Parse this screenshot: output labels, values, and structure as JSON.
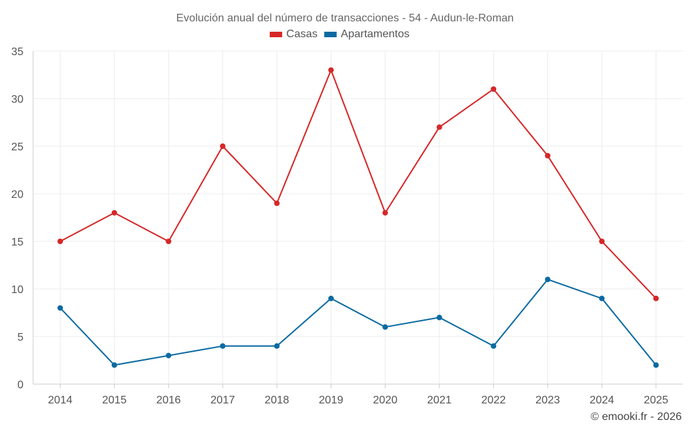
{
  "chart_data": {
    "type": "line",
    "title": "Evolución anual del número de transacciones - 54 - Audun-le-Roman",
    "categories": [
      "2014",
      "2015",
      "2016",
      "2017",
      "2018",
      "2019",
      "2020",
      "2021",
      "2022",
      "2023",
      "2024",
      "2025"
    ],
    "series": [
      {
        "name": "Casas",
        "color": "#d62728",
        "values": [
          15,
          18,
          15,
          25,
          19,
          33,
          18,
          27,
          31,
          24,
          15,
          9
        ]
      },
      {
        "name": "Apartamentos",
        "color": "#0a6aa1",
        "values": [
          8,
          2,
          3,
          4,
          4,
          9,
          6,
          7,
          4,
          11,
          9,
          2
        ]
      }
    ],
    "yticks": [
      "0",
      "5",
      "10",
      "15",
      "20",
      "25",
      "30",
      "35"
    ],
    "ylim": [
      0,
      35
    ],
    "xlabel": "",
    "ylabel": "",
    "grid": true,
    "legend_position": "top-center"
  },
  "credit": "© emooki.fr - 2026"
}
